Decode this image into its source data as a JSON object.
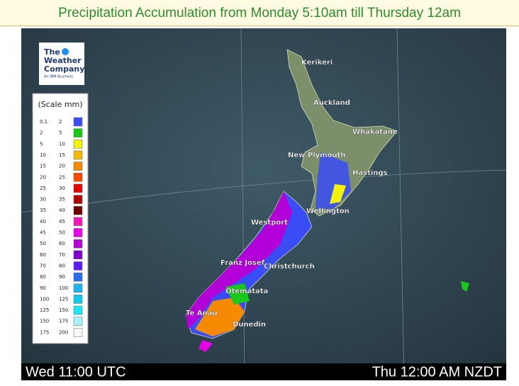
{
  "header": {
    "title": "Precipitation Accumulation from Monday 5:10am till Thursday 12am"
  },
  "logo": {
    "line1": "The",
    "line2": "Weather",
    "line3": "Company",
    "tagline": "An IBM Business"
  },
  "legend": {
    "title": "(Scale mm)",
    "rows": [
      {
        "low": 0.1,
        "high": 2,
        "color": "#3a4cf5"
      },
      {
        "low": 2,
        "high": 5,
        "color": "#19c919"
      },
      {
        "low": 5,
        "high": 10,
        "color": "#f2f20a"
      },
      {
        "low": 10,
        "high": 15,
        "color": "#f5b800"
      },
      {
        "low": 15,
        "high": 20,
        "color": "#f58a00"
      },
      {
        "low": 20,
        "high": 25,
        "color": "#f54a00"
      },
      {
        "low": 25,
        "high": 30,
        "color": "#e60000"
      },
      {
        "low": 30,
        "high": 35,
        "color": "#b30000"
      },
      {
        "low": 35,
        "high": 40,
        "color": "#6e0000"
      },
      {
        "low": 40,
        "high": 45,
        "color": "#f51ab8"
      },
      {
        "low": 45,
        "high": 50,
        "color": "#e600e6"
      },
      {
        "low": 50,
        "high": 60,
        "color": "#b300d9"
      },
      {
        "low": 60,
        "high": 70,
        "color": "#8000cc"
      },
      {
        "low": 70,
        "high": 80,
        "color": "#5a1aff"
      },
      {
        "low": 80,
        "high": 90,
        "color": "#2a6cf0"
      },
      {
        "low": 90,
        "high": 100,
        "color": "#1ab4f0"
      },
      {
        "low": 100,
        "high": 125,
        "color": "#10c8e8"
      },
      {
        "low": 125,
        "high": 150,
        "color": "#1ee6f0"
      },
      {
        "low": 150,
        "high": 175,
        "color": "#a8f0f5"
      },
      {
        "low": 175,
        "high": 200,
        "color": "#f5f5f5"
      }
    ]
  },
  "places": [
    "Kerikeri",
    "Auckland",
    "Whakatane",
    "New Plymouth",
    "Hastings",
    "Wellington",
    "Westport",
    "Franz Josef",
    "Christchurch",
    "Otematata",
    "Te Anau",
    "Dunedin"
  ],
  "footer": {
    "left": "Wed 11:00 UTC",
    "right": "Thu 12:00 AM NZDT"
  }
}
